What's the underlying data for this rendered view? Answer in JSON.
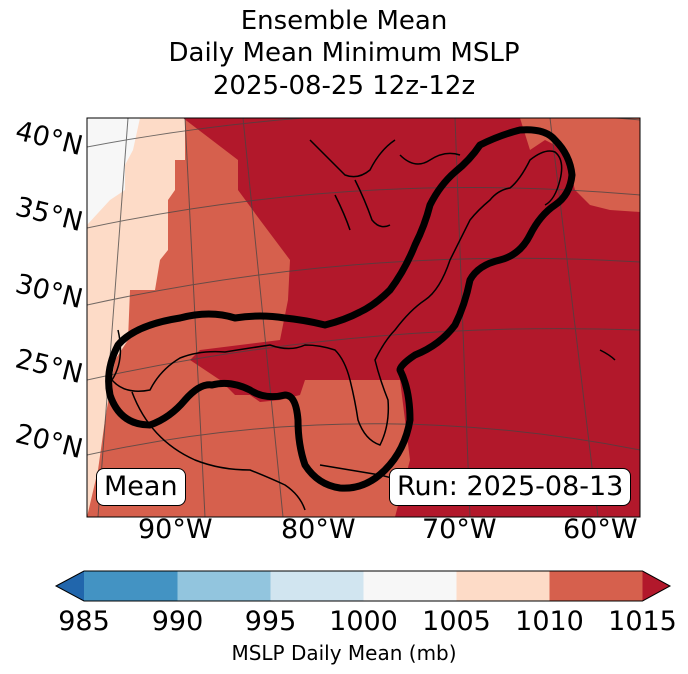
{
  "title": {
    "line1": "Ensemble Mean",
    "line2": "Daily Mean Minimum MSLP",
    "line3": "2025-08-25 12z-12z"
  },
  "lat_labels": [
    "40°N",
    "35°N",
    "30°N",
    "25°N",
    "20°N"
  ],
  "lon_labels": [
    "90°W",
    "80°W",
    "70°W",
    "60°W"
  ],
  "mean_label": "Mean",
  "run_label": "Run: 2025-08-13",
  "colorbar": {
    "ticks": [
      "985",
      "990",
      "995",
      "1000",
      "1005",
      "1010",
      "1015"
    ],
    "label": "MSLP Daily Mean (mb)",
    "colors": [
      "#2166ac",
      "#4393c3",
      "#92c5de",
      "#d1e5f0",
      "#f7f7f7",
      "#fddbc7",
      "#d6604d",
      "#b2182b"
    ]
  },
  "map_colors": {
    "c995_1000": "#f7f7f7",
    "c1005_1010": "#fddbc7",
    "c1010_1015": "#d6604d",
    "c_over_1015": "#b2182b"
  }
}
